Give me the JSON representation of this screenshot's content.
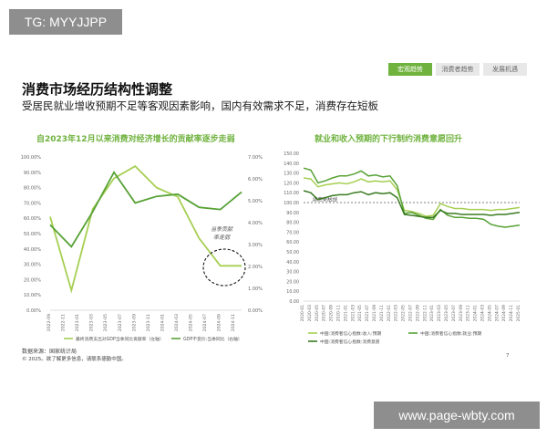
{
  "watermark_top": "TG: MYYJJPP",
  "watermark_bottom": "www.page-wbty.com",
  "tabs": [
    {
      "label": "宏观趋势",
      "active": true
    },
    {
      "label": "消费者趋势",
      "active": false
    },
    {
      "label": "发展机遇",
      "active": false
    }
  ],
  "title": "消费市场经历结构性调整",
  "subtitle": "受居民就业增收预期不足等客观因素影响，国内有效需求不足，消费存在短板",
  "annotation": {
    "line1": "当季贡献",
    "line2": "率走弱"
  },
  "baseline_label": "消费荣枯线",
  "footer": {
    "source": "数据来源：国家统计局",
    "copyright": "© 2025。欲了解更多信息，请联系德勤中国。",
    "page": "7"
  },
  "colors": {
    "accent": "#6fb23e",
    "light": "#a6cf52",
    "dark": "#3a7b22",
    "mid": "#58a236"
  },
  "chart_data": [
    {
      "type": "line",
      "title": "自2023年12月以来消费对经济增长的贡献率逐步走弱",
      "x": [
        "2022-09",
        "2022-11",
        "2023-01",
        "2023-03",
        "2023-05",
        "2023-07",
        "2023-09",
        "2023-11",
        "2024-01",
        "2024-03",
        "2024-05",
        "2024-07",
        "2024-09",
        "2024-11"
      ],
      "y_ticks_left": [
        "0.00%",
        "10.00%",
        "20.00%",
        "30.00%",
        "40.00%",
        "50.00%",
        "60.00%",
        "70.00%",
        "80.00%",
        "90.00%",
        "100.00%"
      ],
      "y_ticks_right": [
        "0.00%",
        "1.00%",
        "2.00%",
        "3.00%",
        "4.00%",
        "5.00%",
        "6.00%",
        "7.00%"
      ],
      "ylim_left": [
        0,
        100
      ],
      "ylim_right": [
        0,
        7
      ],
      "series": [
        {
          "name": "最终消费支出对GDP当季同比贡献率（左轴）",
          "axis": "left",
          "color": "#a6cf52",
          "points": [
            [
              "2022-09",
              61
            ],
            [
              "2022-12",
              13
            ],
            [
              "2023-03",
              66
            ],
            [
              "2023-06",
              86
            ],
            [
              "2023-09",
              94
            ],
            [
              "2023-12",
              80
            ],
            [
              "2024-03",
              74
            ],
            [
              "2024-06",
              47
            ],
            [
              "2024-09",
              29
            ],
            [
              "2024-12",
              29
            ]
          ]
        },
        {
          "name": "GDP不变价:当季同比（右轴）",
          "axis": "right",
          "color": "#58a236",
          "points": [
            [
              "2022-09",
              3.9
            ],
            [
              "2022-12",
              2.9
            ],
            [
              "2023-03",
              4.5
            ],
            [
              "2023-06",
              6.3
            ],
            [
              "2023-09",
              4.9
            ],
            [
              "2023-12",
              5.2
            ],
            [
              "2024-03",
              5.3
            ],
            [
              "2024-06",
              4.7
            ],
            [
              "2024-09",
              4.6
            ],
            [
              "2024-12",
              5.4
            ]
          ]
        }
      ]
    },
    {
      "type": "line",
      "title": "就业和收入预期的下行制约消费意愿回升",
      "x": [
        "2020-01",
        "2020-03",
        "2020-05",
        "2020-07",
        "2020-09",
        "2020-11",
        "2021-01",
        "2021-03",
        "2021-05",
        "2021-07",
        "2021-09",
        "2021-11",
        "2022-01",
        "2022-03",
        "2022-05",
        "2022-07",
        "2022-09",
        "2022-11",
        "2023-01",
        "2023-03",
        "2023-05",
        "2023-07",
        "2023-09",
        "2023-11",
        "2024-01",
        "2024-03",
        "2024-05",
        "2024-07",
        "2024-09",
        "2024-11",
        "2025-01"
      ],
      "y_ticks": [
        "0.00",
        "10.00",
        "20.00",
        "30.00",
        "40.00",
        "50.00",
        "60.00",
        "70.00",
        "80.00",
        "90.00",
        "100.00",
        "110.00",
        "120.00",
        "130.00",
        "140.00",
        "150.00"
      ],
      "ylim": [
        0,
        150
      ],
      "baseline": 100,
      "series": [
        {
          "name": "中国:消费者信心指数:收入:预期",
          "color": "#a6cf52",
          "values": [
            125,
            124,
            116,
            118,
            119,
            120,
            119,
            121,
            124,
            121,
            122,
            121,
            122,
            113,
            92,
            91,
            89,
            86,
            87,
            99,
            96,
            94,
            94,
            93,
            93,
            93,
            92,
            93,
            93,
            94,
            95
          ]
        },
        {
          "name": "中国:消费者信心指数:就业:预期",
          "color": "#58a236",
          "values": [
            135,
            133,
            120,
            122,
            125,
            127,
            127,
            129,
            132,
            127,
            128,
            126,
            127,
            117,
            89,
            90,
            87,
            84,
            83,
            93,
            87,
            85,
            85,
            84,
            84,
            83,
            78,
            76,
            75,
            76,
            77
          ]
        },
        {
          "name": "中国:消费者信心指数:消费意愿",
          "color": "#3a7b22",
          "values": [
            112,
            110,
            103,
            105,
            107,
            108,
            108,
            110,
            111,
            108,
            110,
            109,
            110,
            105,
            88,
            87,
            86,
            85,
            85,
            92,
            89,
            89,
            88,
            88,
            88,
            88,
            87,
            88,
            88,
            89,
            90
          ]
        }
      ]
    }
  ]
}
